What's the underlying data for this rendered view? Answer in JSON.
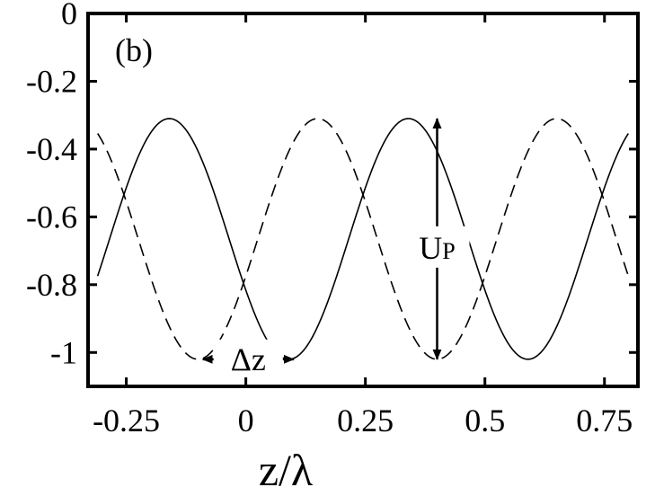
{
  "chart_data": {
    "type": "line",
    "panel_label": "(b)",
    "xlabel": "z/λ",
    "ylabel": "",
    "xlim": [
      -0.33,
      0.82
    ],
    "ylim": [
      -1.1,
      0.0
    ],
    "xticks": [
      -0.25,
      0,
      0.25,
      0.5,
      0.75
    ],
    "xtick_labels": [
      "-0.25",
      "0",
      "0.25",
      "0.5",
      "0.75"
    ],
    "yticks": [
      0,
      -0.2,
      -0.4,
      -0.6,
      -0.8,
      -1
    ],
    "ytick_labels": [
      "0",
      "-0.2",
      "-0.4",
      "-0.6",
      "-0.8",
      "-1"
    ],
    "grid": false,
    "series": [
      {
        "style": "solid",
        "function": "cosine",
        "mean": -0.665,
        "amplitude": 0.355,
        "period": 0.5,
        "peak_at": -0.16,
        "x_range": [
          -0.31,
          0.8
        ]
      },
      {
        "style": "dashed",
        "function": "cosine",
        "mean": -0.665,
        "amplitude": 0.355,
        "period": 0.5,
        "peak_at": 0.15,
        "x_range": [
          -0.31,
          0.8
        ]
      }
    ],
    "annotations": [
      {
        "name": "delta-z",
        "label_main": "Δz",
        "label_sub": "",
        "type": "horizontal-double-arrow",
        "x_from": -0.09,
        "x_to": 0.1,
        "y": -1.02
      },
      {
        "name": "up",
        "label_main": "U",
        "label_sub": "P",
        "type": "vertical-double-arrow",
        "x": 0.4,
        "y_from": -0.31,
        "y_to": -1.02
      }
    ]
  }
}
